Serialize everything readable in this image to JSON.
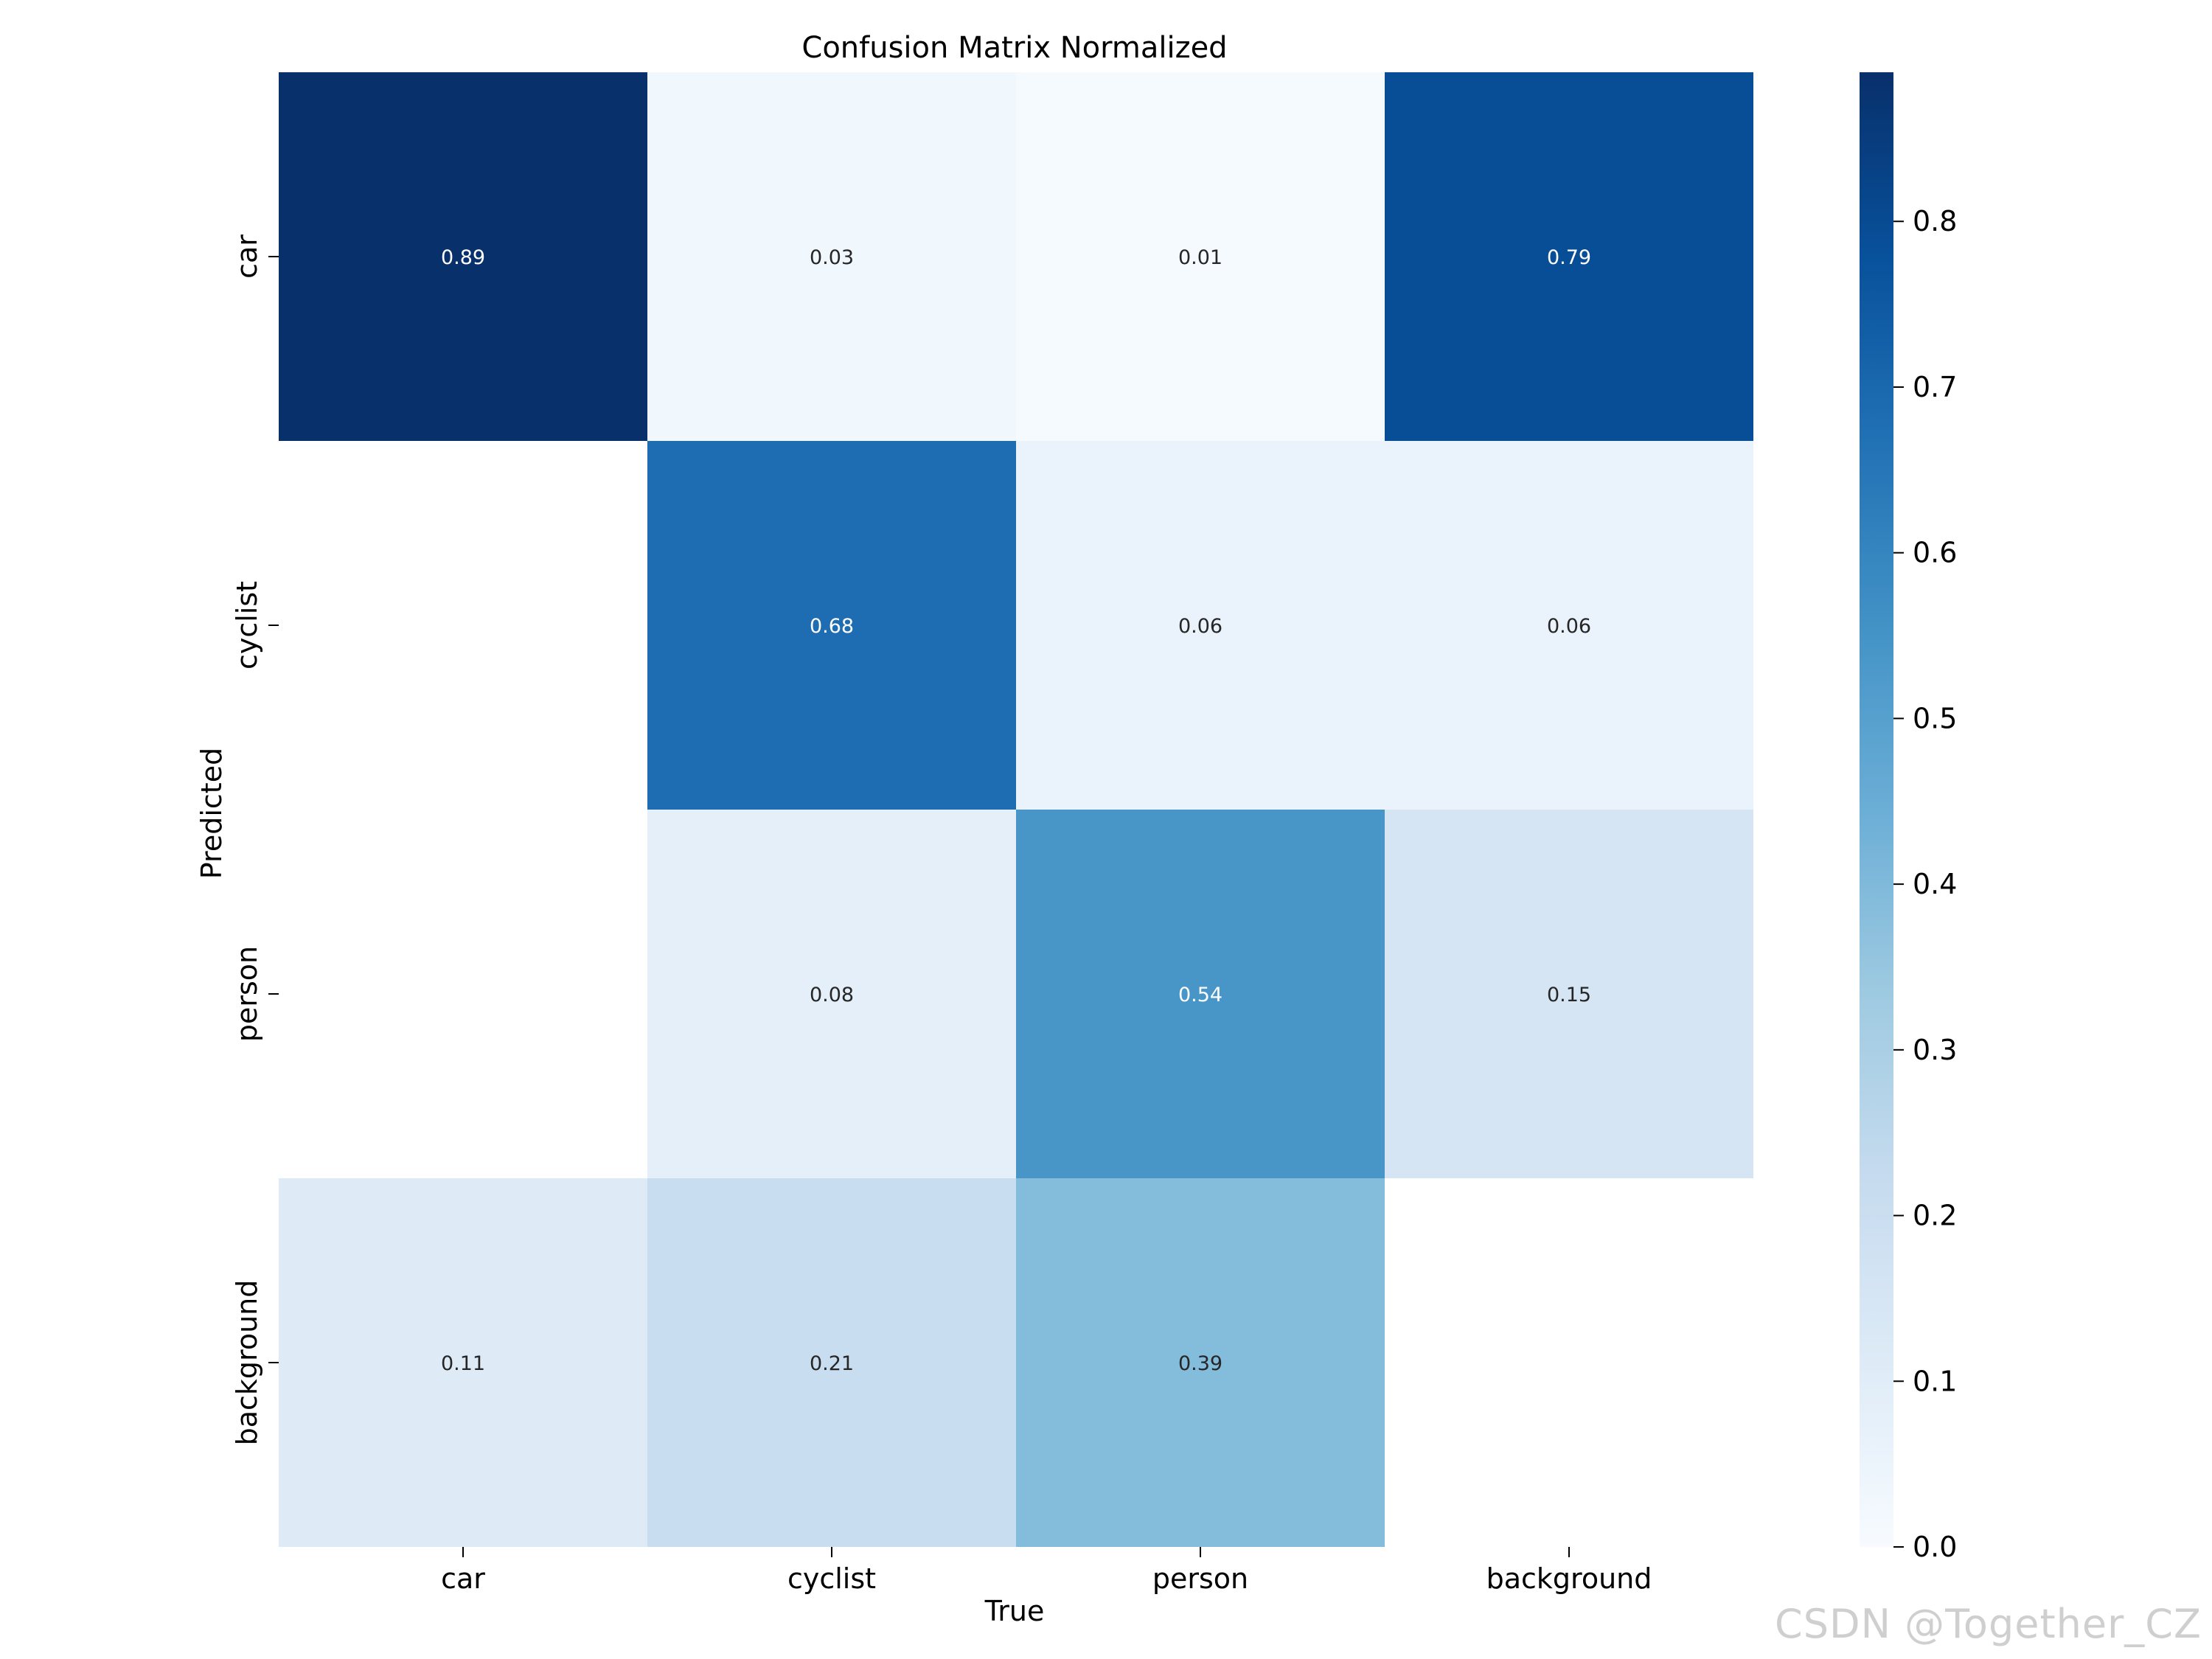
{
  "chart_data": {
    "type": "heatmap",
    "title": "Confusion Matrix Normalized",
    "xlabel": "True",
    "ylabel": "Predicted",
    "x_categories": [
      "car",
      "cyclist",
      "person",
      "background"
    ],
    "y_categories": [
      "car",
      "cyclist",
      "person",
      "background"
    ],
    "values": [
      [
        0.89,
        0.03,
        0.01,
        0.79
      ],
      [
        null,
        0.68,
        0.06,
        0.06
      ],
      [
        null,
        0.08,
        0.54,
        0.15
      ],
      [
        0.11,
        0.21,
        0.39,
        null
      ]
    ],
    "value_labels": [
      [
        "0.89",
        "0.03",
        "0.01",
        "0.79"
      ],
      [
        "",
        "0.68",
        "0.06",
        "0.06"
      ],
      [
        "",
        "0.08",
        "0.54",
        "0.15"
      ],
      [
        "0.11",
        "0.21",
        "0.39",
        ""
      ]
    ],
    "colorscale": "Blues",
    "vmin": 0.0,
    "vmax": 0.89,
    "colorbar_ticks": [
      0.0,
      0.1,
      0.2,
      0.3,
      0.4,
      0.5,
      0.6,
      0.7,
      0.8
    ],
    "colorbar_tick_labels": [
      "0.0",
      "0.1",
      "0.2",
      "0.3",
      "0.4",
      "0.5",
      "0.6",
      "0.7",
      "0.8"
    ]
  },
  "watermark": "CSDN @Together_CZ"
}
